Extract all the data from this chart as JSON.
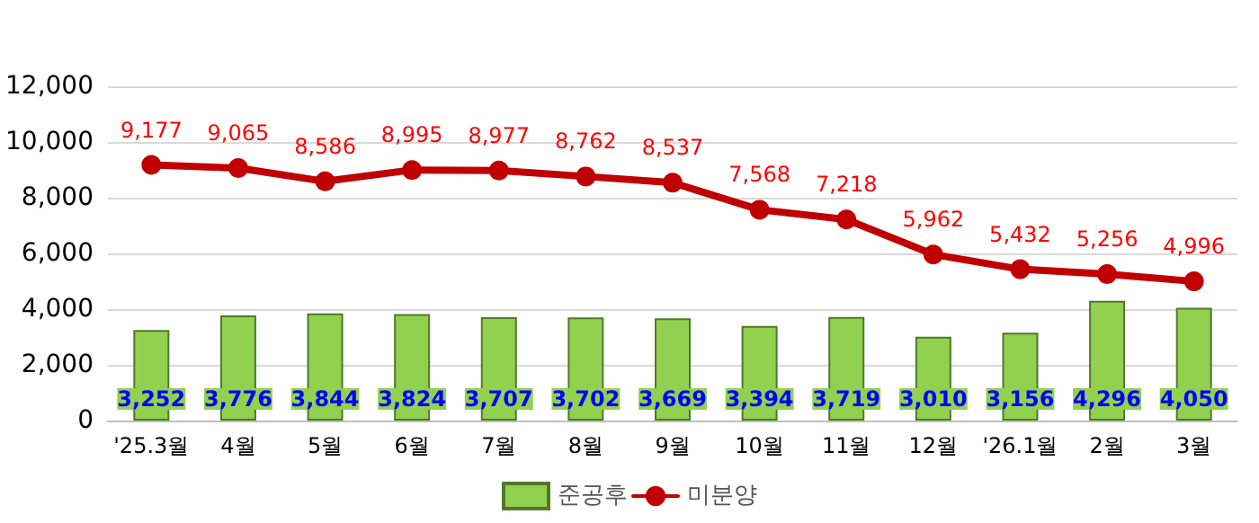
{
  "chart_data": {
    "type": "bar",
    "categories": [
      "'25.3월",
      "4월",
      "5월",
      "6월",
      "7월",
      "8월",
      "9월",
      "10월",
      "11월",
      "12월",
      "'26.1월",
      "2월",
      "3월"
    ],
    "series": [
      {
        "name": "준공후",
        "color": "#92d050",
        "values": [
          3252,
          3776,
          3844,
          3824,
          3707,
          3702,
          3669,
          3394,
          3719,
          3010,
          3156,
          4296,
          4050
        ],
        "value_labels": [
          "3,252",
          "3,776",
          "3,844",
          "3,824",
          "3,707",
          "3,702",
          "3,669",
          "3,394",
          "3,719",
          "3,010",
          "3,156",
          "4,296",
          "4,050"
        ]
      },
      {
        "name": "미분양",
        "type": "line",
        "color": "#c00000",
        "values": [
          9177,
          9065,
          8586,
          8995,
          8977,
          8762,
          8537,
          7568,
          7218,
          5962,
          5432,
          5256,
          4996
        ],
        "value_labels": [
          "9,177",
          "9,065",
          "8,586",
          "8,995",
          "8,977",
          "8,762",
          "8,537",
          "7,568",
          "7,218",
          "5,962",
          "5,432",
          "5,256",
          "4,996"
        ]
      }
    ],
    "ylim": [
      0,
      12000
    ],
    "yticks": [
      {
        "value": 0,
        "label": "0"
      },
      {
        "value": 2000,
        "label": "2,000"
      },
      {
        "value": 4000,
        "label": "4,000"
      },
      {
        "value": 6000,
        "label": "6,000"
      },
      {
        "value": 8000,
        "label": "8,000"
      },
      {
        "value": 10000,
        "label": "10,000"
      },
      {
        "value": 12000,
        "label": "12,000"
      }
    ],
    "grid": "y",
    "legend": "bottom",
    "marker": "circle",
    "line_style": "solid"
  }
}
